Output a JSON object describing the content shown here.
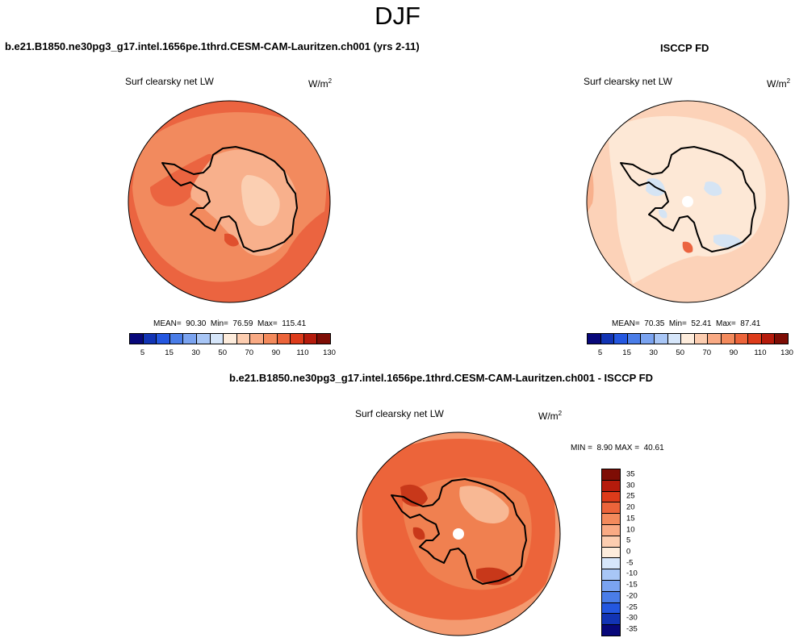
{
  "title": "DJF",
  "panel_left": {
    "heading": "b.e21.B1850.ne30pg3_g17.intel.1656pe.1thrd.CESM-CAM-Lauritzen.ch001 (yrs 2-11)",
    "variable": "Surf clearsky net LW",
    "unit_base": "W/m",
    "unit_exp": "2",
    "mean_label": "MEAN=",
    "mean": "90.30",
    "min_label": "Min=",
    "min": "76.59",
    "max_label": "Max=",
    "max": "115.41",
    "colors": {
      "ocean": "#eb6440",
      "coast_band": "#f28a5e",
      "interior": "#f8b08c",
      "plateau": "#fbcfb2",
      "hotspot": "#e0502e"
    }
  },
  "panel_right": {
    "heading": "ISCCP FD",
    "variable": "Surf clearsky net LW",
    "unit_base": "W/m",
    "unit_exp": "2",
    "mean_label": "MEAN=",
    "mean": "70.35",
    "min_label": "Min=",
    "min": "52.41",
    "max_label": "Max=",
    "max": "87.41",
    "colors": {
      "ocean": "#fcd2b8",
      "interior": "#fde8d6",
      "cold_patch": "#d5e4f4",
      "warm_patch": "#f8b08c",
      "hotspot": "#eb6440"
    }
  },
  "colorbar_abs": {
    "colors": [
      "#08087a",
      "#1234b4",
      "#2457e0",
      "#4a7de8",
      "#7aa3f0",
      "#a8c6f6",
      "#d6e6fa",
      "#fdecdc",
      "#fccdb0",
      "#f9aa84",
      "#f38a5c",
      "#ec643a",
      "#dd3b1a",
      "#b51b0c",
      "#7e0d05"
    ],
    "ticks": [
      "5",
      "15",
      "30",
      "50",
      "70",
      "90",
      "110",
      "130"
    ]
  },
  "panel_diff": {
    "heading": "b.e21.B1850.ne30pg3_g17.intel.1656pe.1thrd.CESM-CAM-Lauritzen.ch001 - ISCCP FD",
    "variable": "Surf clearsky net LW",
    "unit_base": "W/m",
    "unit_exp": "2",
    "minmax_label_min": "MIN =",
    "min": "8.90",
    "minmax_label_max": "MAX =",
    "max": "40.61",
    "colors": {
      "ocean": "#f49a70",
      "band": "#ec643a",
      "land": "#f08050",
      "dark": "#c8381a",
      "light": "#f8b894"
    }
  },
  "colorbar_diff": {
    "colors": [
      "#7e0d05",
      "#b51b0c",
      "#dd3b1a",
      "#ec643a",
      "#f38a5c",
      "#f9aa84",
      "#fccdb0",
      "#fdecdc",
      "#d6e6fa",
      "#a8c6f6",
      "#7aa3f0",
      "#4a7de8",
      "#2457e0",
      "#1234b4",
      "#08087a"
    ],
    "ticks": [
      "35",
      "30",
      "25",
      "20",
      "15",
      "10",
      "5",
      "0",
      "-5",
      "-10",
      "-15",
      "-20",
      "-25",
      "-30",
      "-35"
    ]
  }
}
